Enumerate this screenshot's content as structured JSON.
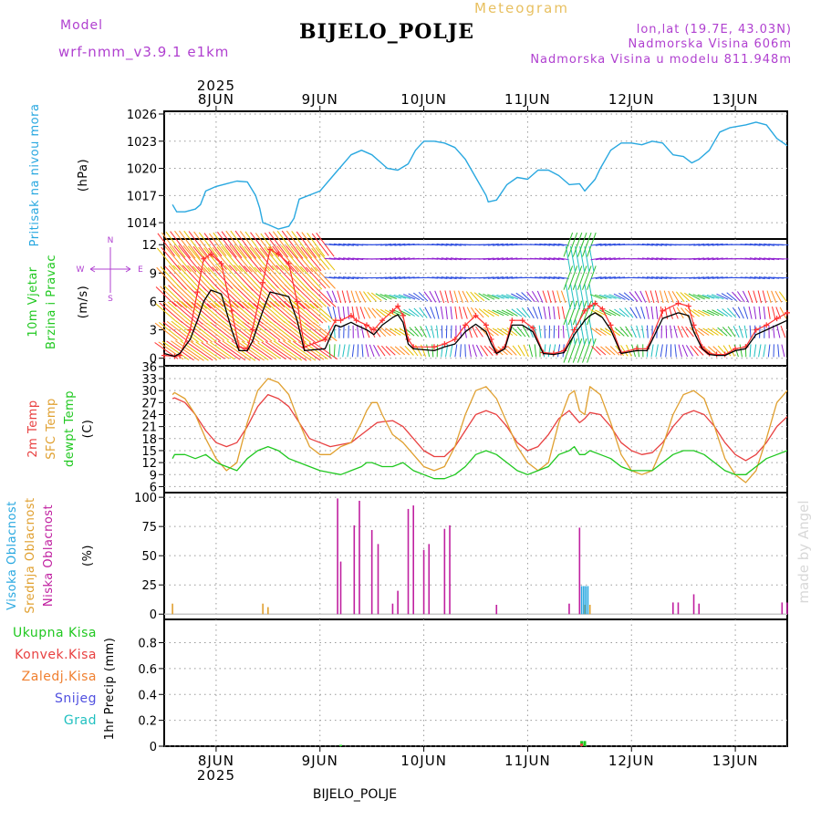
{
  "header": {
    "model_label": "Model",
    "model_name": "wrf-nmm_v3.9.1  e1km",
    "chart_kind": "Meteogram",
    "station": "BIJELO_POLJE",
    "lonlat": "lon,lat (19.7E, 43.03N)",
    "altitude": "Nadmorska Visina 606m",
    "altitude_model": "Nadmorska Visina u modelu 811.948m",
    "footer_station": "BIJELO_POLJE",
    "credit": "made by Angel"
  },
  "colors": {
    "pressure": "#29a8e0",
    "wind_speed": "#000000",
    "gust": "#ff3030",
    "temp_2m": "#e84040",
    "sfc_temp": "#e0a030",
    "dewpoint": "#20c820",
    "high_cloud": "#29a8e0",
    "mid_cloud": "#e0a030",
    "low_cloud": "#c020a0",
    "precip_total": "#20c820",
    "precip_conv": "#e84040",
    "precip_frozen": "#f08030",
    "precip_snow": "#5050e0",
    "precip_hail": "#20c0c0",
    "credit": "#d8d8d8"
  },
  "chart_data": [
    {
      "type": "line",
      "panel": "pressure",
      "ylabel": "Pritisak na nivou mora",
      "unit": "(hPa)",
      "yticks": [
        1014,
        1017,
        1020,
        1023,
        1026
      ],
      "ylim": [
        1012.2,
        1026.3
      ],
      "grid": true,
      "x_days": [
        7.58,
        7.62,
        7.7,
        7.8,
        7.85,
        7.9,
        8.0,
        8.1,
        8.2,
        8.3,
        8.38,
        8.42,
        8.45,
        8.5,
        8.6,
        8.7,
        8.75,
        8.8,
        9.0,
        9.15,
        9.3,
        9.4,
        9.5,
        9.58,
        9.65,
        9.75,
        9.85,
        9.92,
        10.0,
        10.1,
        10.2,
        10.3,
        10.4,
        10.5,
        10.6,
        10.62,
        10.7,
        10.8,
        10.9,
        11.0,
        11.1,
        11.2,
        11.3,
        11.4,
        11.5,
        11.55,
        11.65,
        11.7,
        11.8,
        11.9,
        12.0,
        12.1,
        12.2,
        12.3,
        12.4,
        12.5,
        12.58,
        12.65,
        12.75,
        12.85,
        12.95,
        13.1,
        13.2,
        13.3,
        13.4,
        13.5
      ],
      "series": [
        {
          "values": [
            1016.0,
            1015.2,
            1015.2,
            1015.5,
            1016.0,
            1017.5,
            1018.0,
            1018.3,
            1018.6,
            1018.5,
            1017.0,
            1015.6,
            1014.0,
            1013.8,
            1013.3,
            1013.6,
            1014.5,
            1016.6,
            1017.5,
            1019.5,
            1021.5,
            1022.0,
            1021.5,
            1020.7,
            1020.0,
            1019.8,
            1020.5,
            1022.0,
            1023.0,
            1023.0,
            1022.8,
            1022.3,
            1021.0,
            1019.0,
            1017.0,
            1016.3,
            1016.5,
            1018.2,
            1019.0,
            1018.8,
            1019.8,
            1019.8,
            1019.2,
            1018.2,
            1018.3,
            1017.5,
            1018.8,
            1020.0,
            1022.0,
            1022.8,
            1022.8,
            1022.6,
            1023.0,
            1022.8,
            1021.5,
            1021.3,
            1020.6,
            1021.0,
            1022.0,
            1024.0,
            1024.5,
            1024.8,
            1025.1,
            1024.8,
            1023.3,
            1022.5
          ]
        }
      ]
    },
    {
      "type": "line",
      "panel": "wind",
      "ylabel": [
        "10m Vjetar",
        "Brzina i Pravac"
      ],
      "unit": "(m/s)",
      "compass": [
        "N",
        "W",
        "E",
        "S"
      ],
      "yticks": [
        0,
        3,
        6,
        9,
        12
      ],
      "ylim": [
        -0.8,
        12.6
      ],
      "grid": true,
      "x_days": [
        7.5,
        7.6,
        7.65,
        7.75,
        7.82,
        7.88,
        7.95,
        8.05,
        8.15,
        8.22,
        8.3,
        8.35,
        8.45,
        8.52,
        8.6,
        8.7,
        8.78,
        8.85,
        9.05,
        9.15,
        9.2,
        9.3,
        9.35,
        9.45,
        9.52,
        9.6,
        9.7,
        9.75,
        9.8,
        9.85,
        9.9,
        10.1,
        10.2,
        10.3,
        10.4,
        10.5,
        10.6,
        10.65,
        10.7,
        10.78,
        10.85,
        10.95,
        11.05,
        11.15,
        11.25,
        11.35,
        11.45,
        11.55,
        11.6,
        11.65,
        11.72,
        11.8,
        11.9,
        12.05,
        12.15,
        12.3,
        12.45,
        12.55,
        12.6,
        12.68,
        12.75,
        12.82,
        12.9,
        13.0,
        13.1,
        13.2,
        13.3,
        13.4,
        13.5
      ],
      "series": [
        {
          "name": "speed",
          "values": [
            0.5,
            0.2,
            0.5,
            2,
            4,
            6,
            7.2,
            6.8,
            3,
            0.8,
            0.8,
            1.8,
            5,
            7,
            6.8,
            6.5,
            4,
            0.8,
            1,
            3.5,
            3.3,
            3.8,
            3.5,
            3.0,
            2.5,
            3.5,
            4.3,
            4.6,
            3.8,
            1.5,
            1.0,
            0.8,
            1.2,
            1.5,
            2.8,
            3.6,
            2.8,
            1.5,
            0.5,
            1.0,
            3.5,
            3.5,
            2.8,
            0.5,
            0.4,
            0.6,
            2.5,
            4.0,
            4.5,
            4.8,
            4.3,
            3.0,
            0.5,
            0.8,
            0.8,
            4.2,
            4.8,
            4.5,
            2.8,
            1.0,
            0.4,
            0.3,
            0.3,
            0.8,
            1.0,
            2.5,
            3.0,
            3.5,
            4.0
          ]
        },
        {
          "name": "gust",
          "values": [
            0.3,
            0.2,
            0.3,
            3,
            7,
            10.5,
            11,
            10,
            5,
            1.2,
            1,
            3,
            8,
            11.5,
            11,
            10,
            6,
            1.2,
            2,
            4,
            4,
            4.5,
            4,
            3.5,
            3,
            4,
            5,
            5.5,
            4.5,
            2,
            1.2,
            1.2,
            1.5,
            2,
            3.5,
            4.5,
            3.5,
            2,
            0.6,
            1.2,
            4,
            4,
            3.2,
            0.6,
            0.5,
            0.8,
            3,
            5,
            5.5,
            5.8,
            5.2,
            3.5,
            0.6,
            1,
            1,
            5,
            5.8,
            5.5,
            3.5,
            1.2,
            0.5,
            0.4,
            0.4,
            1,
            1.2,
            3,
            3.5,
            4.2,
            4.8
          ]
        }
      ],
      "wind_barb_rows": [
        0.8,
        2.8,
        4.8,
        6.5,
        8.5,
        10.5,
        12.0
      ]
    },
    {
      "type": "line",
      "panel": "temperature",
      "ylabel": [
        "2m Temp",
        "SFC Temp",
        "dewpt Temp"
      ],
      "unit": "(C)",
      "yticks": [
        6,
        9,
        12,
        15,
        18,
        21,
        24,
        27,
        30,
        33,
        36
      ],
      "ylim": [
        4.5,
        36.2
      ],
      "grid": true,
      "x_days": [
        7.58,
        7.6,
        7.7,
        7.8,
        7.9,
        8.0,
        8.1,
        8.2,
        8.3,
        8.4,
        8.5,
        8.6,
        8.7,
        8.8,
        8.9,
        9.0,
        9.1,
        9.2,
        9.3,
        9.4,
        9.45,
        9.5,
        9.55,
        9.6,
        9.7,
        9.8,
        9.9,
        10.0,
        10.1,
        10.2,
        10.3,
        10.4,
        10.5,
        10.6,
        10.7,
        10.8,
        10.9,
        11.0,
        11.1,
        11.2,
        11.3,
        11.4,
        11.45,
        11.5,
        11.55,
        11.6,
        11.7,
        11.8,
        11.9,
        12.0,
        12.1,
        12.2,
        12.3,
        12.4,
        12.5,
        12.6,
        12.7,
        12.8,
        12.9,
        13.0,
        13.1,
        13.2,
        13.3,
        13.4,
        13.5
      ],
      "series": [
        {
          "name": "2m Temp",
          "values": [
            28,
            28.2,
            27,
            24,
            20,
            17,
            16,
            17,
            21,
            26,
            29,
            28,
            26,
            22,
            18,
            17,
            16,
            16.5,
            17,
            19,
            20,
            21,
            22,
            22.2,
            22.5,
            21,
            18,
            15,
            13.5,
            13.5,
            16,
            20,
            24,
            25,
            24,
            21,
            17,
            15,
            16,
            19,
            23,
            25,
            23.5,
            22,
            23,
            24.5,
            24,
            21,
            17,
            15,
            14,
            14.5,
            17,
            21,
            24,
            25,
            24,
            21,
            17,
            14,
            12.5,
            14,
            17,
            21,
            23.5
          ]
        },
        {
          "name": "SFC Temp",
          "values": [
            29,
            29.5,
            28,
            24,
            18,
            13,
            10,
            12,
            22,
            30,
            33,
            32,
            29,
            22,
            16,
            14,
            14,
            16,
            17,
            22,
            25,
            27,
            27,
            24,
            19,
            17,
            14,
            11,
            10,
            11,
            16,
            24,
            30,
            31,
            28,
            22,
            16,
            12,
            10,
            12,
            22,
            29,
            30,
            25,
            24,
            31,
            29,
            22,
            14,
            10,
            9,
            10,
            16,
            24,
            29,
            30,
            28,
            21,
            13,
            9,
            7,
            10,
            18,
            27,
            30
          ]
        },
        {
          "name": "dewpt Temp",
          "values": [
            13,
            14,
            14,
            13,
            14,
            12,
            11,
            10,
            13,
            15,
            16,
            15,
            13,
            12,
            11,
            10,
            9.5,
            9,
            10,
            11,
            12,
            12,
            11.5,
            11,
            11,
            12,
            10,
            9,
            8,
            8,
            9,
            11,
            14,
            15,
            14,
            12,
            10,
            9,
            10,
            11,
            14,
            15,
            16,
            14,
            14,
            15,
            14,
            13,
            11,
            10,
            10,
            10,
            12,
            14,
            15,
            15,
            14,
            12,
            10,
            9,
            9,
            11,
            13,
            14,
            15
          ]
        }
      ]
    },
    {
      "type": "bar",
      "panel": "clouds",
      "ylabel": [
        "Visoka Oblacnost",
        "Srednja Oblacnost",
        "Niska Oblacnost"
      ],
      "unit": "(%)",
      "yticks": [
        0,
        25,
        50,
        75,
        100
      ],
      "ylim": [
        -4.5,
        104
      ],
      "grid": true,
      "series": [
        {
          "name": "Niska Oblacnost",
          "points": [
            [
              9.17,
              99
            ],
            [
              9.2,
              45
            ],
            [
              9.33,
              76
            ],
            [
              9.38,
              97
            ],
            [
              9.5,
              72
            ],
            [
              9.56,
              60
            ],
            [
              9.7,
              9
            ],
            [
              9.75,
              20
            ],
            [
              9.85,
              90
            ],
            [
              9.9,
              93
            ],
            [
              10.0,
              55
            ],
            [
              10.05,
              60
            ],
            [
              10.2,
              73
            ],
            [
              10.25,
              76
            ],
            [
              10.7,
              8
            ],
            [
              11.4,
              9
            ],
            [
              11.5,
              74
            ],
            [
              12.4,
              10
            ],
            [
              12.45,
              10
            ],
            [
              12.6,
              17
            ],
            [
              12.65,
              9
            ],
            [
              13.45,
              10
            ],
            [
              13.5,
              10
            ]
          ]
        },
        {
          "name": "Srednja Oblacnost",
          "points": [
            [
              7.58,
              9
            ],
            [
              8.45,
              9
            ],
            [
              8.5,
              6
            ],
            [
              11.55,
              8
            ],
            [
              11.6,
              8
            ]
          ]
        },
        {
          "name": "Visoka Oblacnost",
          "points": [
            [
              11.52,
              24
            ],
            [
              11.54,
              24
            ],
            [
              11.56,
              24
            ],
            [
              11.58,
              24
            ]
          ]
        }
      ]
    },
    {
      "type": "bar",
      "panel": "precipitation",
      "ylabel": "1hr Precip (mm)",
      "legend": [
        "Ukupna Kisa",
        "Konvek.Kisa",
        "Zaledj.Kisa",
        "Snijeg",
        "Grad"
      ],
      "yticks": [
        0,
        0.2,
        0.4,
        0.6,
        0.8
      ],
      "ylim": [
        0,
        0.98
      ],
      "grid": true,
      "series": [
        {
          "name": "Ukupna Kisa",
          "points": [
            [
              9.2,
              0.01
            ],
            [
              11.52,
              0.04
            ],
            [
              11.55,
              0.04
            ]
          ]
        },
        {
          "name": "Konvek.Kisa",
          "points": [
            [
              11.52,
              0.02
            ]
          ]
        }
      ]
    }
  ],
  "x_axis": {
    "year": "2025",
    "day_labels": [
      "8JUN",
      "9JUN",
      "10JUN",
      "11JUN",
      "12JUN",
      "13JUN"
    ],
    "day_positions": [
      8,
      9,
      10,
      11,
      12,
      13
    ],
    "range": [
      7.5,
      13.5
    ]
  }
}
